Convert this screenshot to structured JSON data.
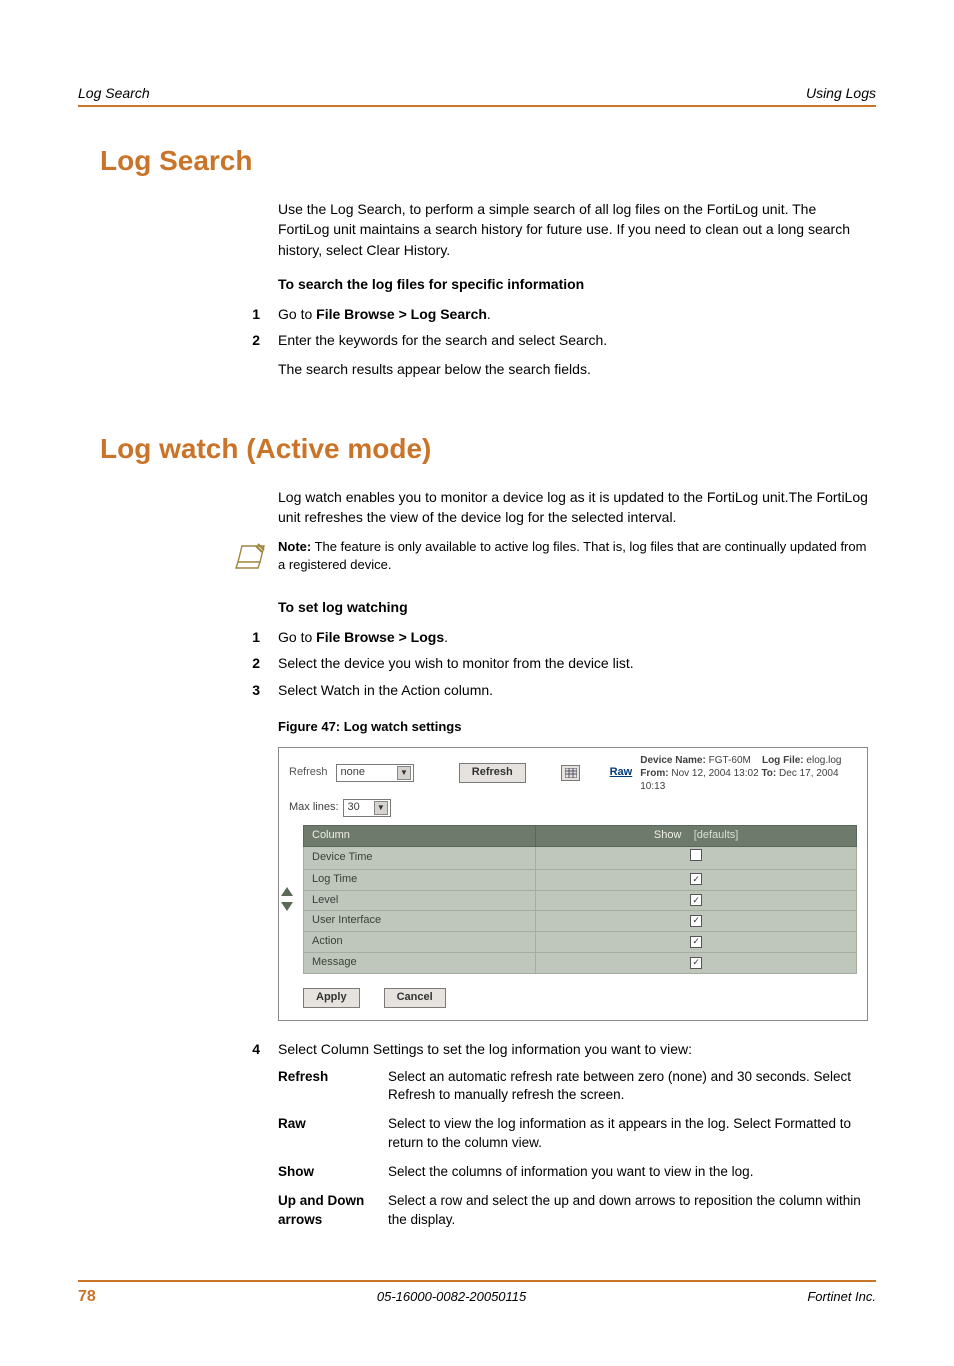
{
  "header": {
    "left": "Log Search",
    "right": "Using Logs"
  },
  "section1": {
    "title": "Log Search",
    "intro": "Use the Log Search, to perform a simple search of all log files on the FortiLog unit. The FortiLog unit maintains a search history for future use. If you need to clean out a long search history, select Clear History.",
    "subhead": "To search the log files for specific information",
    "steps": [
      {
        "n": "1",
        "lines": [
          "Go to <b>File Browse > Log Search</b>."
        ]
      },
      {
        "n": "2",
        "lines": [
          "Enter the keywords for the search and select Search.",
          "The search results appear below the search fields."
        ]
      }
    ]
  },
  "section2": {
    "title": "Log watch (Active mode)",
    "intro": "Log watch enables you to monitor a device log as it is updated to the FortiLog unit.The FortiLog unit refreshes the view of the device log for the selected interval.",
    "note_label": "Note:",
    "note": "The feature is only available to active log files. That is, log files that are continually updated from a registered device.",
    "subhead": "To set log watching",
    "steps_a": [
      {
        "n": "1",
        "lines": [
          "Go to <b>File Browse > Logs</b>."
        ]
      },
      {
        "n": "2",
        "lines": [
          "Select the device you wish to monitor from the device list."
        ]
      },
      {
        "n": "3",
        "lines": [
          "Select Watch in the Action column."
        ]
      }
    ],
    "fig_caption": "Figure 47: Log watch settings",
    "step4": {
      "n": "4",
      "text": "Select Column Settings to set the log information you want to view:"
    }
  },
  "figure": {
    "refresh_label": "Refresh",
    "refresh_value": "none",
    "refresh_btn": "Refresh",
    "raw_link": "Raw",
    "maxlines_label": "Max lines:",
    "maxlines_value": "30",
    "dev_name_k": "Device Name:",
    "dev_name_v": "FGT-60M",
    "log_file_k": "Log File:",
    "log_file_v": "elog.log",
    "from_k": "From:",
    "from_v": "Nov 12, 2004 13:02",
    "to_k": "To:",
    "to_v": "Dec 17, 2004 10:13",
    "col_hd": "Column",
    "show_hd": "Show",
    "defaults": "[defaults]",
    "rows": [
      {
        "name": "Device Time",
        "checked": false
      },
      {
        "name": "Log Time",
        "checked": true
      },
      {
        "name": "Level",
        "checked": true
      },
      {
        "name": "User Interface",
        "checked": true
      },
      {
        "name": "Action",
        "checked": true
      },
      {
        "name": "Message",
        "checked": true
      }
    ],
    "apply": "Apply",
    "cancel": "Cancel",
    "colors": {
      "header_bg": "#6e7a6c",
      "row_bg": "#bfc7bd",
      "btn_bg": "#e6e3de"
    }
  },
  "desc": [
    {
      "k": "Refresh",
      "v": "Select an automatic refresh rate between zero (none) and 30 seconds. Select Refresh to manually refresh the screen."
    },
    {
      "k": "Raw",
      "v": "Select to view the log information as it appears in the log. Select Formatted to return to the column view."
    },
    {
      "k": "Show",
      "v": "Select the columns of information you want to view in the log."
    },
    {
      "k": "Up and Down arrows",
      "v": "Select a row and select the up and down arrows to reposition the column within the display."
    }
  ],
  "footer": {
    "page": "78",
    "mid": "05-16000-0082-20050115",
    "right": "Fortinet Inc."
  }
}
